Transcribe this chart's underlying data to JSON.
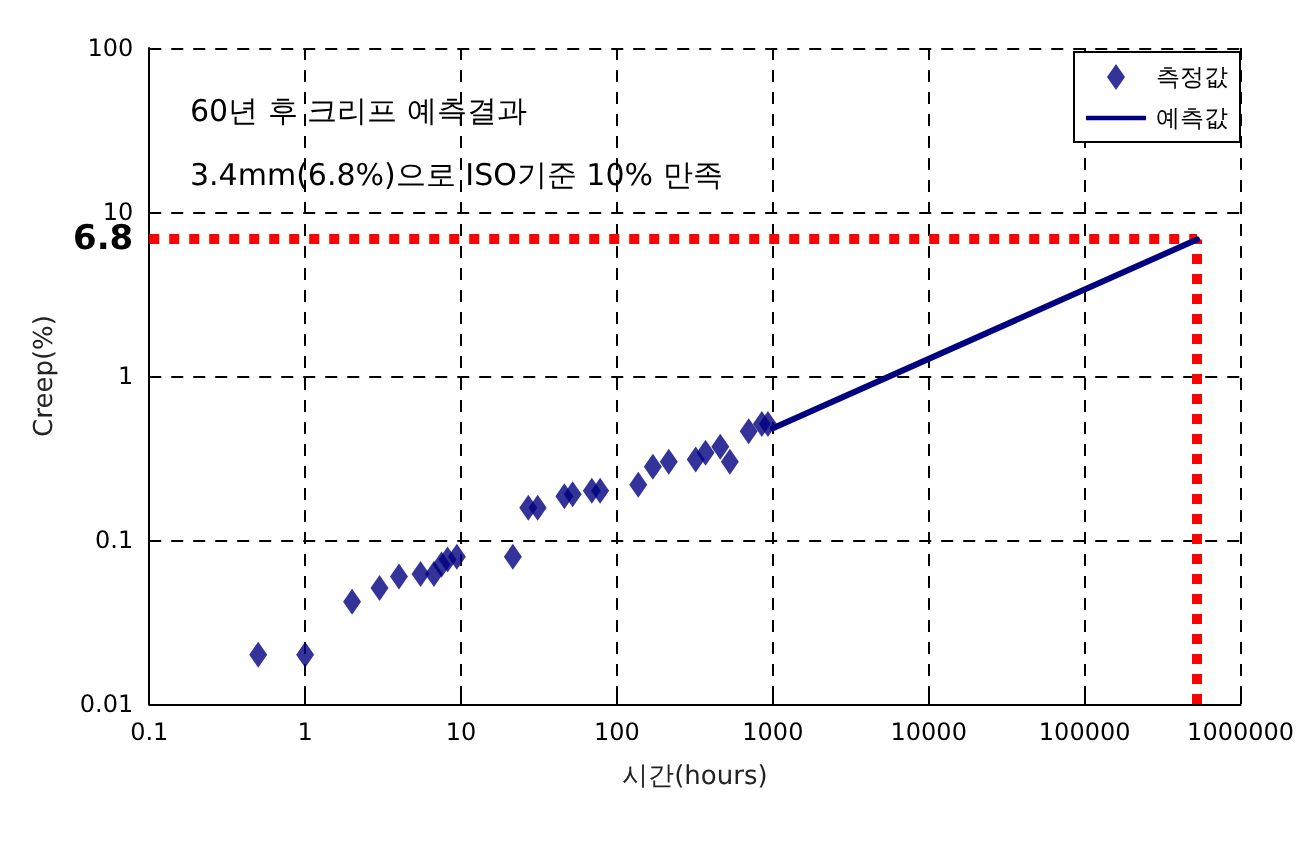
{
  "chart_data": {
    "type": "scatter",
    "xlabel": "시간(hours)",
    "ylabel": "Creep(%)",
    "annotations": [
      "60년 후 크리프 예측결과",
      "3.4mm(6.8%)으로 ISO기준 10% 만족"
    ],
    "log": "xy",
    "grid": true,
    "legend": "top right",
    "marker": "diamond",
    "xlim": [
      0.1,
      1000000
    ],
    "xticks": [
      0.1,
      1,
      10,
      100,
      1000,
      10000,
      100000,
      1000000
    ],
    "ylim": [
      0.01,
      100
    ],
    "yticks": [
      0.01,
      0.1,
      1,
      10,
      100
    ],
    "series": [
      {
        "name": "측정값",
        "color": "#000080",
        "x": [
          0.5,
          1,
          2,
          3,
          4,
          5.5,
          6.7,
          7.5,
          8.2,
          9.4,
          21.5,
          27,
          31,
          46,
          52,
          69,
          78,
          137,
          170,
          215,
          320,
          370,
          460,
          530,
          700,
          850,
          930
        ],
        "values": [
          0.02,
          0.02,
          0.042,
          0.051,
          0.06,
          0.062,
          0.062,
          0.071,
          0.076,
          0.079,
          0.079,
          0.157,
          0.157,
          0.185,
          0.19,
          0.2,
          0.2,
          0.217,
          0.28,
          0.3,
          0.31,
          0.34,
          0.37,
          0.3,
          0.46,
          0.51,
          0.51
        ]
      },
      {
        "name": "예측값",
        "type": "line",
        "marker": "none",
        "color": "#000080",
        "x": [
          1000,
          525600
        ],
        "values": [
          0.48,
          6.8
        ]
      }
    ],
    "ref_lines": [
      {
        "axis": "y",
        "value": 6.8,
        "label": "6.8",
        "color": "#ff0000",
        "line_style": "dotted"
      },
      {
        "axis": "x",
        "value": 525600,
        "label": null,
        "color": "#ff0000",
        "line_style": "dotted"
      }
    ]
  }
}
